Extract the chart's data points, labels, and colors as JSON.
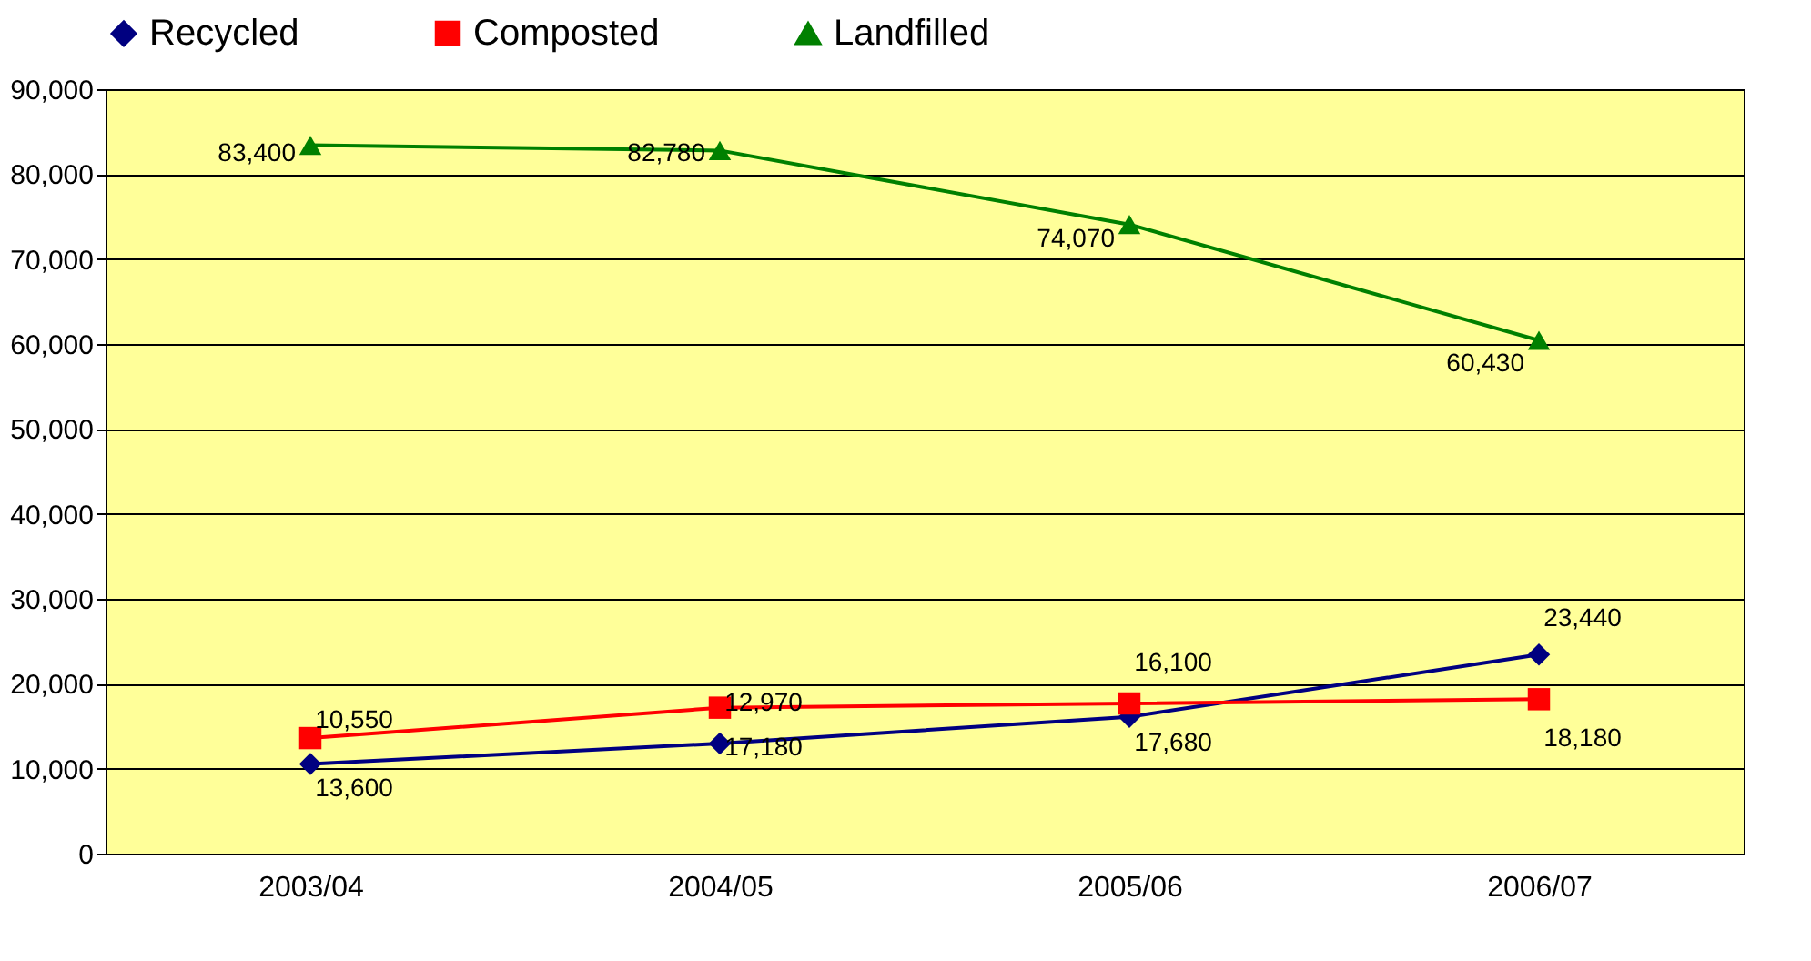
{
  "chart_data": {
    "type": "line",
    "categories": [
      "2003/04",
      "2004/05",
      "2005/06",
      "2006/07"
    ],
    "series": [
      {
        "name": "Recycled",
        "color": "#000080",
        "marker": "diamond",
        "values": [
          10550,
          12970,
          16100,
          23440
        ],
        "value_labels": [
          "10,550",
          "12,970",
          "16,100",
          "23,440"
        ]
      },
      {
        "name": "Composted",
        "color": "#ff0000",
        "marker": "square",
        "values": [
          13600,
          17180,
          17680,
          18180
        ],
        "value_labels": [
          "13,600",
          "17,180",
          "17,680",
          "18,180"
        ]
      },
      {
        "name": "Landfilled",
        "color": "#008000",
        "marker": "triangle",
        "values": [
          83400,
          82780,
          74070,
          60430
        ],
        "value_labels": [
          "83,400",
          "82,780",
          "74,070",
          "60,430"
        ]
      }
    ],
    "ylim": [
      0,
      90000
    ],
    "yticks": [
      {
        "value": 0,
        "label": "0"
      },
      {
        "value": 10000,
        "label": "10,000"
      },
      {
        "value": 20000,
        "label": "20,000"
      },
      {
        "value": 30000,
        "label": "30,000"
      },
      {
        "value": 40000,
        "label": "40,000"
      },
      {
        "value": 50000,
        "label": "50,000"
      },
      {
        "value": 60000,
        "label": "60,000"
      },
      {
        "value": 70000,
        "label": "70,000"
      },
      {
        "value": 80000,
        "label": "80,000"
      },
      {
        "value": 90000,
        "label": "90,000"
      }
    ],
    "grid": "y",
    "legend": "top"
  }
}
